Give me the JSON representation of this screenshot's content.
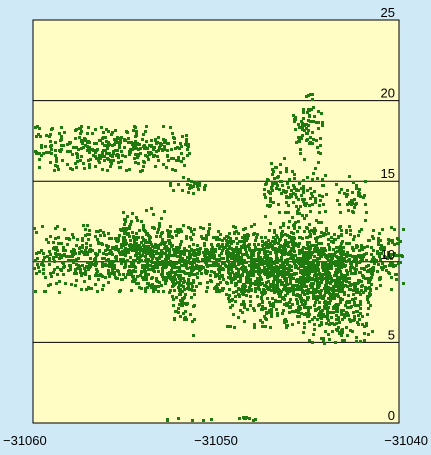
{
  "colors": {
    "background": "#cfe9f7",
    "plot_area": "#fffcc4",
    "points": "#1f7a10",
    "gridline": "#000000"
  },
  "chart_data": {
    "type": "scatter",
    "title": "",
    "xlabel": "",
    "ylabel": "",
    "xlim": [
      -31060,
      -31040
    ],
    "ylim": [
      0,
      25
    ],
    "x_ticks": [
      -31060,
      -31050,
      -31040
    ],
    "x_tick_labels": [
      "−31060",
      "−31050",
      "−31040"
    ],
    "y_ticks": [
      0,
      5,
      10,
      15,
      20,
      25
    ],
    "y_tick_labels": [
      "0",
      "5",
      "10",
      "15",
      "20",
      "25"
    ],
    "y_axis_position": "right",
    "grid": "horizontal",
    "legend": "none",
    "series": [
      {
        "point_clusters": [
          {
            "x": [
              -31060,
              -31051.5
            ],
            "y": [
              15.7,
              18.5
            ],
            "density": 0.45
          },
          {
            "x": [
              -31052.6,
              -31050.4
            ],
            "y": [
              14.3,
              15.4
            ],
            "density": 0.35
          },
          {
            "x": [
              -31060,
              -31039.8
            ],
            "y": [
              8.2,
              12.4
            ],
            "density": 0.6
          },
          {
            "x": [
              -31055.5,
              -31052.5
            ],
            "y": [
              8.5,
              13.5
            ],
            "density": 0.3
          },
          {
            "x": [
              -31052.6,
              -31051.2
            ],
            "y": [
              5.2,
              11
            ],
            "density": 0.35
          },
          {
            "x": [
              -31049.5,
              -31043
            ],
            "y": [
              6,
              12
            ],
            "density": 0.55
          },
          {
            "x": [
              -31045.5,
              -31041.5
            ],
            "y": [
              5,
              11
            ],
            "density": 0.45
          },
          {
            "x": [
              -31047.5,
              -31044
            ],
            "y": [
              12,
              16.5
            ],
            "density": 0.3
          },
          {
            "x": [
              -31046,
              -31044.2
            ],
            "y": [
              16.5,
              20.6
            ],
            "density": 0.3
          },
          {
            "x": [
              -31043.6,
              -31041.8
            ],
            "y": [
              12.5,
              15.5
            ],
            "density": 0.25
          },
          {
            "x": [
              -31049,
              -31047.8
            ],
            "y": [
              0.25,
              0.5
            ],
            "density": 0.8
          },
          {
            "x": [
              -31053.6,
              -31050
            ],
            "y": [
              0.15,
              0.35
            ],
            "density": 0.25
          }
        ]
      }
    ]
  }
}
